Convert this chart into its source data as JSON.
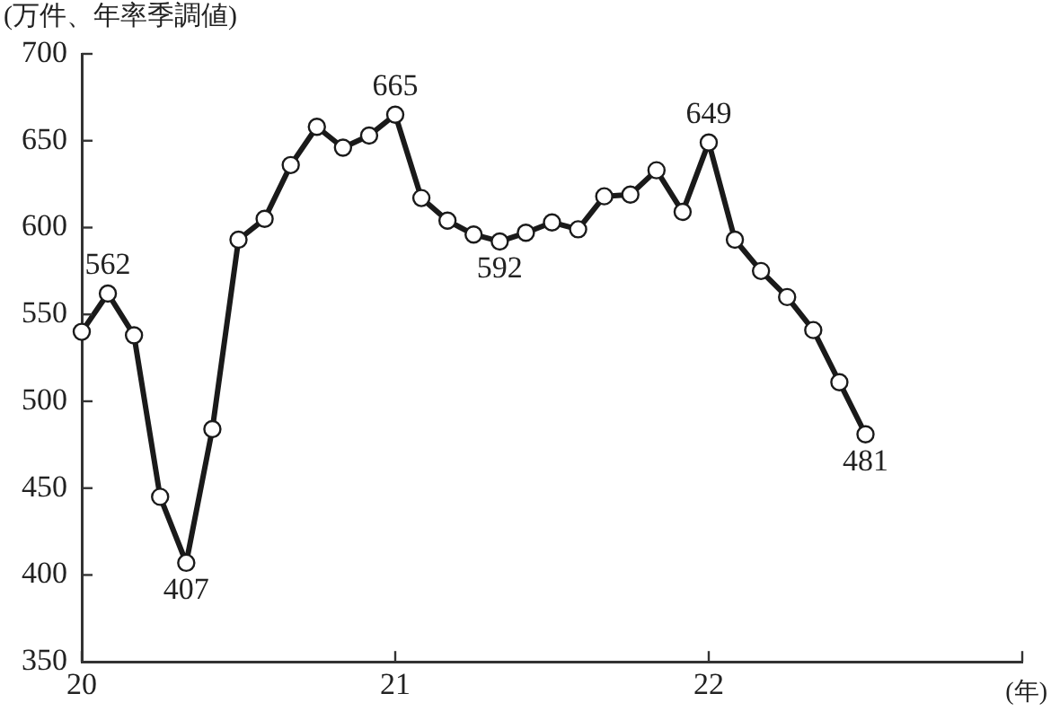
{
  "chart_data": {
    "type": "line",
    "ylabel": "(万件、年率季調値)",
    "xlabel": "(年)",
    "x": [
      "2020-01",
      "2020-02",
      "2020-03",
      "2020-04",
      "2020-05",
      "2020-06",
      "2020-07",
      "2020-08",
      "2020-09",
      "2020-10",
      "2020-11",
      "2020-12",
      "2021-01",
      "2021-02",
      "2021-03",
      "2021-04",
      "2021-05",
      "2021-06",
      "2021-07",
      "2021-08",
      "2021-09",
      "2021-10",
      "2021-11",
      "2021-12",
      "2022-01",
      "2022-02",
      "2022-03",
      "2022-04",
      "2022-05",
      "2022-06",
      "2022-07"
    ],
    "series": [
      {
        "color": "#1a1a1a",
        "values": [
          540,
          562,
          538,
          445,
          407,
          484,
          593,
          605,
          636,
          658,
          646,
          653,
          665,
          617,
          604,
          596,
          592,
          597,
          603,
          599,
          618,
          619,
          633,
          609,
          649,
          593,
          575,
          560,
          541,
          511,
          481
        ],
        "value_labels": [
          null,
          "562",
          null,
          null,
          "407",
          null,
          null,
          null,
          null,
          null,
          null,
          null,
          "665",
          null,
          null,
          null,
          "592",
          null,
          null,
          null,
          null,
          null,
          null,
          null,
          "649",
          null,
          null,
          null,
          null,
          null,
          "481"
        ]
      }
    ],
    "xlim": [
      "2020-01",
      "2023-01"
    ],
    "xticks": [
      {
        "value": "2020-01",
        "label": "20"
      },
      {
        "value": "2021-01",
        "label": "21"
      },
      {
        "value": "2022-01",
        "label": "22"
      },
      {
        "value": "2023-01",
        "label": null
      }
    ],
    "ylim": [
      350,
      700
    ],
    "yticks": [
      350,
      400,
      450,
      500,
      550,
      600,
      650,
      700
    ],
    "grid": false,
    "legend": false,
    "marker": "circle",
    "line_style": "solid"
  }
}
